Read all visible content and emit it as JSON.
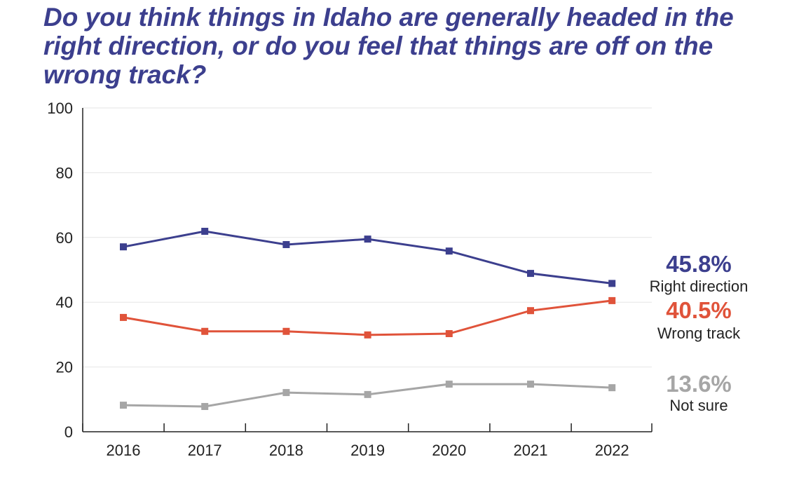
{
  "chart_data": {
    "type": "line",
    "title": "Do you think things in Idaho are generally headed in the right direction, or do you feel that things are off on the wrong track?",
    "categories": [
      "2016",
      "2017",
      "2018",
      "2019",
      "2020",
      "2021",
      "2022"
    ],
    "ylim": [
      0,
      100
    ],
    "yticks": [
      "0",
      "20",
      "40",
      "60",
      "80",
      "100"
    ],
    "grid": true,
    "legend": "right end labels",
    "series": [
      {
        "name": "Right direction",
        "label": "45.8%",
        "color": "#3c3f8e",
        "values": [
          57.1,
          61.9,
          57.8,
          59.5,
          55.8,
          48.9,
          45.8
        ]
      },
      {
        "name": "Wrong track",
        "label": "40.5%",
        "color": "#e0533a",
        "values": [
          35.3,
          31.0,
          31.0,
          29.9,
          30.3,
          37.4,
          40.5
        ]
      },
      {
        "name": "Not sure",
        "label": "13.6%",
        "color": "#a6a6a6",
        "values": [
          8.2,
          7.8,
          12.1,
          11.5,
          14.7,
          14.7,
          13.6
        ]
      }
    ]
  }
}
